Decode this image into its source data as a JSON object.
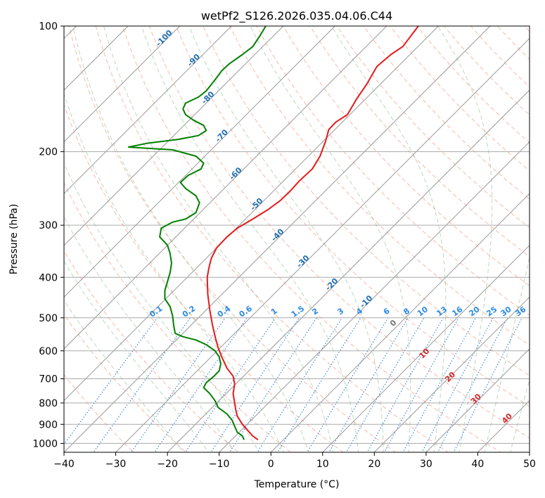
{
  "chart_data": {
    "type": "line",
    "title": "wetPf2_S126.2026.035.04.06.C44",
    "xlabel": "Temperature (°C)",
    "ylabel": "Pressure (hPa)",
    "xlim": [
      -40,
      50
    ],
    "ylim": [
      1050,
      100
    ],
    "y_scale": "log",
    "grid": true,
    "x_ticks": [
      -40,
      -30,
      -20,
      -10,
      0,
      10,
      20,
      30,
      40,
      50
    ],
    "x_tick_labels": [
      "−40",
      "−30",
      "−20",
      "−10",
      "0",
      "10",
      "20",
      "30",
      "40",
      "50"
    ],
    "y_ticks": [
      100,
      200,
      300,
      400,
      500,
      600,
      700,
      800,
      900,
      1000
    ],
    "y_tick_labels": [
      "100",
      "200",
      "300",
      "400",
      "500",
      "600",
      "700",
      "800",
      "900",
      "1000"
    ],
    "skew_isotherms_labels": [
      {
        "t": -100,
        "text": "-100"
      },
      {
        "t": -90,
        "text": "-90"
      },
      {
        "t": -80,
        "text": "-80"
      },
      {
        "t": -70,
        "text": "-70"
      },
      {
        "t": -60,
        "text": "-60"
      },
      {
        "t": -50,
        "text": "-50"
      },
      {
        "t": -40,
        "text": "-40"
      },
      {
        "t": -30,
        "text": "-30"
      },
      {
        "t": -20,
        "text": "-20"
      },
      {
        "t": -10,
        "text": "-10"
      }
    ],
    "mixing_ratio_labels": [
      "0.1",
      "0.2",
      "0.4",
      "0.6",
      "1",
      "1.5",
      "2",
      "3",
      "4",
      "6",
      "8",
      "10",
      "13",
      "16",
      "20",
      "25",
      "30",
      "36"
    ],
    "moist_adiabat_labels": [
      {
        "text": "0",
        "color": "#777777"
      },
      {
        "text": "10",
        "color": "#d62728"
      },
      {
        "text": "20",
        "color": "#d62728"
      },
      {
        "text": "30",
        "color": "#d62728"
      },
      {
        "text": "40",
        "color": "#d62728"
      }
    ],
    "series": [
      {
        "color": "#e41a1c",
        "points": [
          [
            -2.5,
            980
          ],
          [
            -3.5,
            960
          ],
          [
            -4.5,
            930
          ],
          [
            -5.5,
            900
          ],
          [
            -6.5,
            860
          ],
          [
            -6.8,
            830
          ],
          [
            -7,
            800
          ],
          [
            -7.3,
            760
          ],
          [
            -7,
            720
          ],
          [
            -7.3,
            690
          ],
          [
            -8.5,
            660
          ],
          [
            -9.5,
            620
          ],
          [
            -10.2,
            590
          ],
          [
            -10.7,
            560
          ],
          [
            -11.3,
            520
          ],
          [
            -11.8,
            480
          ],
          [
            -12.2,
            440
          ],
          [
            -12.3,
            400
          ],
          [
            -12,
            380
          ],
          [
            -11.5,
            360
          ],
          [
            -10.5,
            340
          ],
          [
            -8.5,
            320
          ],
          [
            -6.5,
            305
          ],
          [
            -3.5,
            290
          ],
          [
            -0.5,
            275
          ],
          [
            1.8,
            262
          ],
          [
            3.8,
            248
          ],
          [
            5.5,
            235
          ],
          [
            8,
            220
          ],
          [
            9.5,
            205
          ],
          [
            10.5,
            190
          ],
          [
            11.2,
            177
          ],
          [
            12.5,
            170
          ],
          [
            14.8,
            163
          ],
          [
            16.5,
            150
          ],
          [
            18.5,
            138
          ],
          [
            20.5,
            125
          ],
          [
            23.2,
            117
          ],
          [
            25.5,
            112
          ],
          [
            28.5,
            100
          ]
        ]
      },
      {
        "color": "#008000",
        "points": [
          [
            -5.2,
            980
          ],
          [
            -5.5,
            960
          ],
          [
            -6.5,
            940
          ],
          [
            -7,
            910
          ],
          [
            -7.5,
            880
          ],
          [
            -8.5,
            850
          ],
          [
            -10.2,
            820
          ],
          [
            -10.8,
            790
          ],
          [
            -11.8,
            760
          ],
          [
            -13,
            735
          ],
          [
            -12.5,
            715
          ],
          [
            -11,
            690
          ],
          [
            -10,
            670
          ],
          [
            -9.7,
            645
          ],
          [
            -10,
            620
          ],
          [
            -10.8,
            600
          ],
          [
            -12.5,
            580
          ],
          [
            -14.5,
            565
          ],
          [
            -17,
            555
          ],
          [
            -18.5,
            545
          ],
          [
            -18.8,
            520
          ],
          [
            -19,
            495
          ],
          [
            -19.5,
            470
          ],
          [
            -20.5,
            450
          ],
          [
            -20.5,
            430
          ],
          [
            -20,
            410
          ],
          [
            -19.5,
            390
          ],
          [
            -19.2,
            370
          ],
          [
            -19.5,
            350
          ],
          [
            -20,
            335
          ],
          [
            -21.5,
            320
          ],
          [
            -21.2,
            305
          ],
          [
            -19,
            295
          ],
          [
            -16.5,
            290
          ],
          [
            -14.5,
            280
          ],
          [
            -13.8,
            265
          ],
          [
            -14.5,
            255
          ],
          [
            -16.5,
            245
          ],
          [
            -17.5,
            237
          ],
          [
            -16,
            228
          ],
          [
            -13.5,
            220
          ],
          [
            -13,
            213
          ],
          [
            -14.5,
            205
          ],
          [
            -19,
            198
          ],
          [
            -27.5,
            195
          ],
          [
            -24,
            191
          ],
          [
            -18,
            187
          ],
          [
            -14,
            183
          ],
          [
            -12.5,
            178
          ],
          [
            -13,
            173
          ],
          [
            -15,
            168
          ],
          [
            -16.5,
            163
          ],
          [
            -17,
            158
          ],
          [
            -16.5,
            153
          ],
          [
            -14,
            148
          ],
          [
            -12.5,
            143
          ],
          [
            -11.5,
            138
          ],
          [
            -10.5,
            133
          ],
          [
            -9.5,
            128
          ],
          [
            -8,
            123
          ],
          [
            -5.5,
            117
          ],
          [
            -3.5,
            112
          ],
          [
            -2,
            105
          ],
          [
            -1,
            100
          ]
        ]
      }
    ]
  }
}
